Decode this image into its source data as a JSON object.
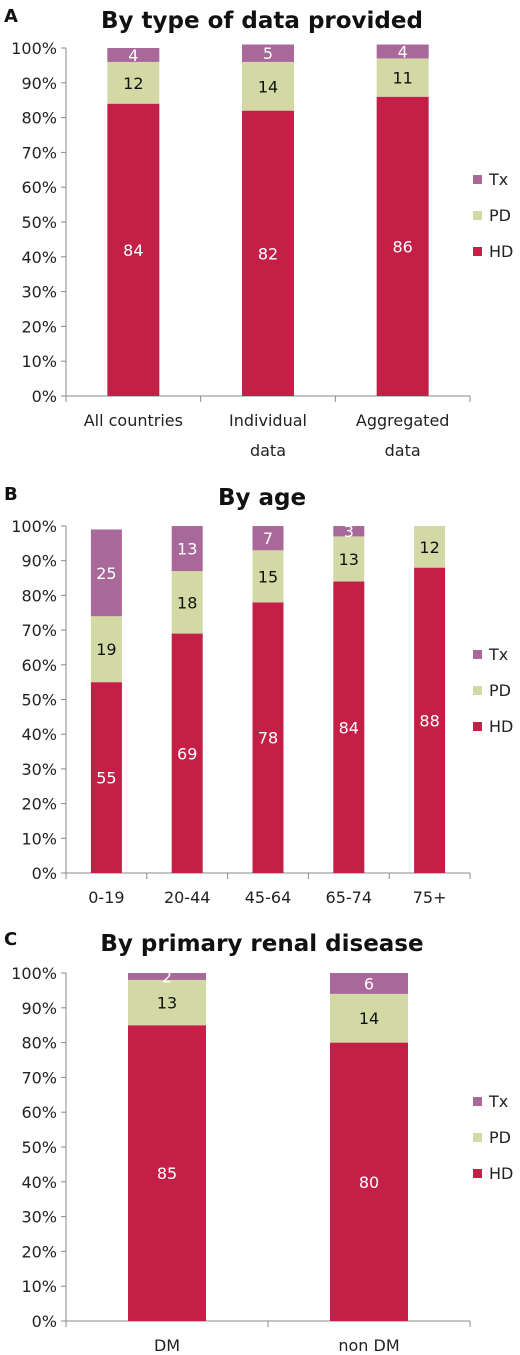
{
  "colors": {
    "HD": "#c42047",
    "PD": "#d2d9a4",
    "Tx": "#a8689a",
    "axis": "#888888"
  },
  "legend": [
    "Tx",
    "PD",
    "HD"
  ],
  "chart_data": [
    {
      "panel": "A",
      "type": "bar",
      "stacked": true,
      "title": "By type of data provided",
      "yticks": [
        "0%",
        "10%",
        "20%",
        "30%",
        "40%",
        "50%",
        "60%",
        "70%",
        "80%",
        "90%",
        "100%"
      ],
      "ylim": [
        0,
        100
      ],
      "categories": [
        [
          "All countries"
        ],
        [
          "Individual",
          "data"
        ],
        [
          "Aggregated",
          "data"
        ]
      ],
      "series": [
        {
          "name": "HD",
          "values": [
            84,
            82,
            86
          ]
        },
        {
          "name": "PD",
          "values": [
            12,
            14,
            11
          ]
        },
        {
          "name": "Tx",
          "values": [
            4,
            5,
            4
          ]
        }
      ],
      "legend_position": "right"
    },
    {
      "panel": "B",
      "type": "bar",
      "stacked": true,
      "title": "By age",
      "yticks": [
        "0%",
        "10%",
        "20%",
        "30%",
        "40%",
        "50%",
        "60%",
        "70%",
        "80%",
        "90%",
        "100%"
      ],
      "ylim": [
        0,
        100
      ],
      "categories": [
        [
          "0-19"
        ],
        [
          "20-44"
        ],
        [
          "45-64"
        ],
        [
          "65-74"
        ],
        [
          "75+"
        ]
      ],
      "series": [
        {
          "name": "HD",
          "values": [
            55,
            69,
            78,
            84,
            88
          ]
        },
        {
          "name": "PD",
          "values": [
            19,
            18,
            15,
            13,
            12
          ]
        },
        {
          "name": "Tx",
          "values": [
            25,
            13,
            7,
            3,
            0
          ]
        }
      ],
      "legend_position": "right"
    },
    {
      "panel": "C",
      "type": "bar",
      "stacked": true,
      "title": "By primary renal disease",
      "yticks": [
        "0%",
        "10%",
        "20%",
        "30%",
        "40%",
        "50%",
        "60%",
        "70%",
        "80%",
        "90%",
        "100%"
      ],
      "ylim": [
        0,
        100
      ],
      "categories": [
        [
          "DM"
        ],
        [
          "non DM"
        ]
      ],
      "series": [
        {
          "name": "HD",
          "values": [
            85,
            80
          ]
        },
        {
          "name": "PD",
          "values": [
            13,
            14
          ]
        },
        {
          "name": "Tx",
          "values": [
            2,
            6
          ]
        }
      ],
      "legend_position": "right"
    }
  ]
}
